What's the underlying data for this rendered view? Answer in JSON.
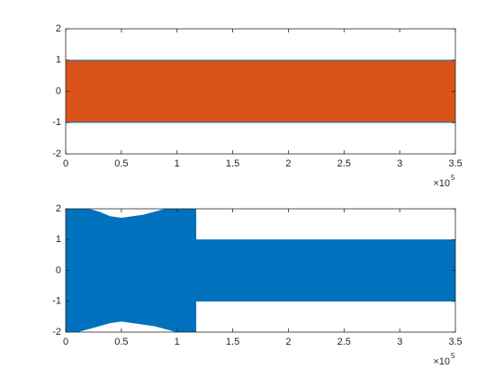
{
  "chart_data": [
    {
      "type": "envelope",
      "x": [
        0,
        25000,
        50000,
        75000,
        100000,
        125000,
        150000,
        175000,
        200000,
        225000,
        250000,
        275000,
        300000,
        325000,
        350000
      ],
      "series": [
        {
          "color": "#0072BD",
          "upper": [
            1.0,
            1.0,
            1.0,
            1.0,
            1.0,
            1.0,
            1.0,
            1.0,
            1.0,
            1.0,
            1.0,
            1.0,
            1.0,
            1.0,
            1.0
          ],
          "lower": [
            -1.0,
            -1.0,
            -1.0,
            -1.0,
            -1.0,
            -1.0,
            -1.0,
            -1.0,
            -1.0,
            -1.0,
            -1.0,
            -1.0,
            -1.0,
            -1.0,
            -1.0
          ]
        },
        {
          "color": "#D95319",
          "upper": [
            0.97,
            0.97,
            0.97,
            0.97,
            0.97,
            0.97,
            0.97,
            0.97,
            0.97,
            0.97,
            0.97,
            0.97,
            0.97,
            0.97,
            0.97
          ],
          "lower": [
            -0.97,
            -0.97,
            -0.97,
            -0.97,
            -0.97,
            -0.97,
            -0.97,
            -0.97,
            -0.97,
            -0.97,
            -0.97,
            -0.97,
            -0.97,
            -0.97,
            -0.97
          ]
        }
      ],
      "xlim": [
        0,
        350000
      ],
      "xticks": [
        0,
        {
          "value": 50000,
          "label": "0.5"
        },
        {
          "value": 100000,
          "label": "1"
        },
        {
          "value": 150000,
          "label": "1.5"
        },
        {
          "value": 200000,
          "label": "2"
        },
        {
          "value": 250000,
          "label": "2.5"
        },
        {
          "value": 300000,
          "label": "3"
        },
        {
          "value": 350000,
          "label": "3.5"
        }
      ],
      "x_multiplier": "×10",
      "x_exponent": "5",
      "ylim": [
        -2,
        2
      ],
      "yticks": [
        -2,
        -1,
        0,
        1,
        2
      ]
    },
    {
      "type": "envelope",
      "x": [
        0,
        10000,
        20000,
        30000,
        40000,
        50000,
        60000,
        70000,
        80000,
        90000,
        100000,
        110000,
        117000,
        117000,
        150000,
        200000,
        250000,
        300000,
        350000
      ],
      "series": [
        {
          "color": "#0072BD",
          "upper": [
            2.0,
            2.0,
            2.0,
            1.9,
            1.75,
            1.7,
            1.75,
            1.8,
            1.9,
            2.0,
            2.0,
            2.0,
            2.0,
            1.0,
            1.0,
            1.0,
            1.0,
            1.0,
            1.0
          ],
          "lower": [
            -2.0,
            -2.0,
            -1.9,
            -1.8,
            -1.7,
            -1.65,
            -1.7,
            -1.75,
            -1.8,
            -1.9,
            -2.0,
            -2.0,
            -2.0,
            -1.0,
            -1.0,
            -1.0,
            -1.0,
            -1.0,
            -1.0
          ]
        }
      ],
      "xlim": [
        0,
        350000
      ],
      "xticks": [
        0,
        {
          "value": 50000,
          "label": "0.5"
        },
        {
          "value": 100000,
          "label": "1"
        },
        {
          "value": 150000,
          "label": "1.5"
        },
        {
          "value": 200000,
          "label": "2"
        },
        {
          "value": 250000,
          "label": "2.5"
        },
        {
          "value": 300000,
          "label": "3"
        },
        {
          "value": 350000,
          "label": "3.5"
        }
      ],
      "x_multiplier": "×10",
      "x_exponent": "5",
      "ylim": [
        -2,
        2
      ],
      "yticks": [
        -2,
        -1,
        0,
        1,
        2
      ]
    }
  ]
}
